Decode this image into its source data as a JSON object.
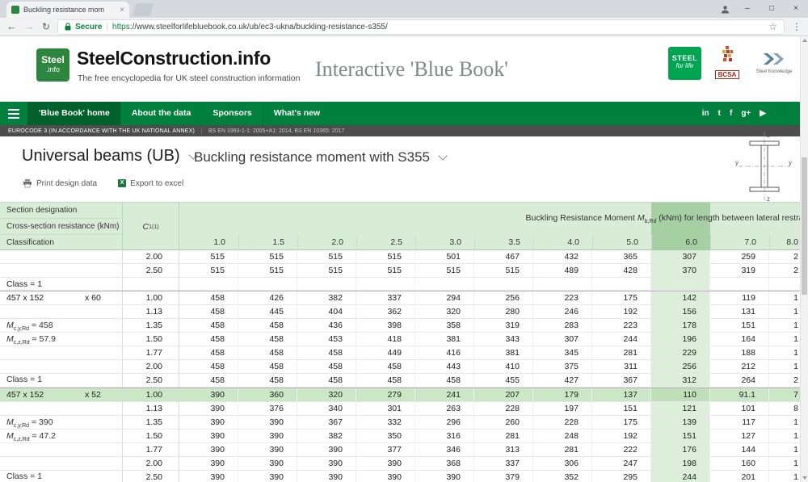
{
  "colors": {
    "nav_green": "#00803c",
    "active_nav_green": "#00612d",
    "header_green": "#d9ecd7",
    "column_highlight_green": "#ddeeda",
    "row_highlight_green": "#cbe7c6",
    "header_column_highlight": "#a6cfa4",
    "secure_green": "#0b8043",
    "excel_green": "#217346",
    "steel_for_life_green": "#00a551"
  },
  "browser": {
    "tab": {
      "title": "Buckling resistance mom",
      "close": "×"
    },
    "window": {
      "minimize": "–",
      "maximize": "□",
      "close": "×"
    },
    "toolbar": {
      "back": "←",
      "forward": "→",
      "refresh": "↻",
      "secure_label": "Secure",
      "separator": "|",
      "url_scheme": "https",
      "url_rest": "://www.steelforlifebluebook.co.uk/ub/ec3-ukna/buckling-resistance-s355/",
      "star": "☆",
      "menu": "⋮"
    }
  },
  "site_header": {
    "logo_top": "Steel",
    "logo_bottom": ".info",
    "title": "SteelConstruction.info",
    "subtitle": "The free encyclopedia for UK steel construction information",
    "tagline": "Interactive 'Blue Book'",
    "partner_steel_for_life": {
      "line1": "STEEL",
      "line2": "for life"
    },
    "partner_bcsa": {
      "label": "BCSA"
    },
    "partner_sci": {
      "caption": "Steel Knowledge"
    }
  },
  "nav": {
    "items": [
      "'Blue Book' home",
      "About the data",
      "Sponsors",
      "What's new"
    ],
    "active_index": 0,
    "social": [
      "in",
      "t",
      "f",
      "g+",
      "▶"
    ]
  },
  "standards_bar": {
    "left": "EUROCODE 3 (IN ACCORDANCE WITH THE UK NATIONAL ANNEX)",
    "right": "BS EN 1993-1-1: 2005+A1: 2014, BS EN 10365: 2017"
  },
  "selectors": {
    "family": "Universal beams (UB)",
    "table": "Buckling resistance moment with S355"
  },
  "actions": {
    "print": "Print design data",
    "export": "Export to excel"
  },
  "diagram": {
    "top": "z",
    "bottom": "z",
    "left": "y",
    "right": "y"
  },
  "table": {
    "highlight_col_index": 8,
    "header": {
      "left_rows": [
        "Section designation",
        "Cross-section resistance (kNm)",
        "Classification"
      ],
      "c1": {
        "sym": "C",
        "sub": "1",
        "sup": "(1)"
      },
      "span_title": {
        "pre": "Buckling Resistance Moment ",
        "sym": "M",
        "sub": "b,Rd",
        "post": " (kNm) for length between lateral restraints (m)"
      },
      "lengths": [
        "1.0",
        "1.5",
        "2.0",
        "2.5",
        "3.0",
        "3.5",
        "4.0",
        "5.0",
        "6.0",
        "7.0",
        "8.0"
      ]
    },
    "leading_rows": {
      "class_label": "Class = 1",
      "rows": [
        {
          "c1": "2.00",
          "values": [
            "515",
            "515",
            "515",
            "515",
            "501",
            "467",
            "432",
            "365",
            "307",
            "259",
            "2"
          ]
        },
        {
          "c1": "2.50",
          "values": [
            "515",
            "515",
            "515",
            "515",
            "515",
            "515",
            "489",
            "428",
            "370",
            "319",
            "2"
          ]
        }
      ]
    },
    "sections": [
      {
        "designation": {
          "serial": "457 x 152",
          "mass": "x 60"
        },
        "mcy": {
          "sym": "M",
          "sub": "c,y,Rd",
          "eq": "= 458"
        },
        "mcz": {
          "sym": "M",
          "sub": "c,z,Rd",
          "eq": "= 57.9"
        },
        "class_label": "Class = 1",
        "highlight_row": null,
        "rows": [
          {
            "c1": "1.00",
            "values": [
              "458",
              "426",
              "382",
              "337",
              "294",
              "256",
              "223",
              "175",
              "142",
              "119",
              "1"
            ]
          },
          {
            "c1": "1.13",
            "values": [
              "458",
              "445",
              "404",
              "362",
              "320",
              "280",
              "246",
              "192",
              "156",
              "131",
              "1"
            ]
          },
          {
            "c1": "1.35",
            "values": [
              "458",
              "458",
              "436",
              "398",
              "358",
              "319",
              "283",
              "223",
              "178",
              "151",
              "1"
            ]
          },
          {
            "c1": "1.50",
            "values": [
              "458",
              "458",
              "453",
              "418",
              "381",
              "343",
              "307",
              "244",
              "196",
              "164",
              "1"
            ]
          },
          {
            "c1": "1.77",
            "values": [
              "458",
              "458",
              "458",
              "449",
              "416",
              "381",
              "345",
              "281",
              "229",
              "188",
              "1"
            ]
          },
          {
            "c1": "2.00",
            "values": [
              "458",
              "458",
              "458",
              "458",
              "443",
              "410",
              "375",
              "311",
              "256",
              "212",
              "1"
            ]
          },
          {
            "c1": "2.50",
            "values": [
              "458",
              "458",
              "458",
              "458",
              "458",
              "455",
              "427",
              "367",
              "312",
              "264",
              "2"
            ]
          }
        ]
      },
      {
        "designation": {
          "serial": "457 x 152",
          "mass": "x 52"
        },
        "mcy": {
          "sym": "M",
          "sub": "c,y,Rd",
          "eq": "= 390"
        },
        "mcz": {
          "sym": "M",
          "sub": "c,z,Rd",
          "eq": "= 47.2"
        },
        "class_label": "Class = 1",
        "highlight_row": 0,
        "rows": [
          {
            "c1": "1.00",
            "values": [
              "390",
              "360",
              "320",
              "279",
              "241",
              "207",
              "179",
              "137",
              "110",
              "91.1",
              "7"
            ]
          },
          {
            "c1": "1.13",
            "values": [
              "390",
              "376",
              "340",
              "301",
              "263",
              "228",
              "197",
              "151",
              "121",
              "101",
              "8"
            ]
          },
          {
            "c1": "1.35",
            "values": [
              "390",
              "390",
              "367",
              "332",
              "296",
              "260",
              "228",
              "175",
              "139",
              "117",
              "1"
            ]
          },
          {
            "c1": "1.50",
            "values": [
              "390",
              "390",
              "382",
              "350",
              "316",
              "281",
              "248",
              "192",
              "151",
              "127",
              "1"
            ]
          },
          {
            "c1": "1.77",
            "values": [
              "390",
              "390",
              "390",
              "377",
              "346",
              "313",
              "281",
              "222",
              "176",
              "144",
              "1"
            ]
          },
          {
            "c1": "2.00",
            "values": [
              "390",
              "390",
              "390",
              "390",
              "368",
              "337",
              "306",
              "247",
              "198",
              "160",
              "1"
            ]
          },
          {
            "c1": "2.50",
            "values": [
              "390",
              "390",
              "390",
              "390",
              "390",
              "379",
              "352",
              "295",
              "244",
              "201",
              "1"
            ]
          }
        ]
      }
    ]
  }
}
